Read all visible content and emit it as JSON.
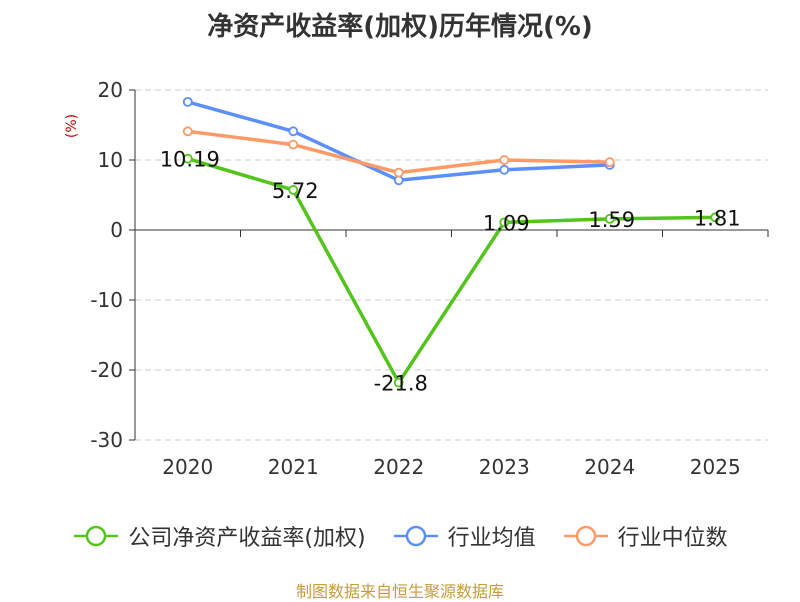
{
  "chart_data": {
    "type": "line",
    "title": "净资产收益率(加权)历年情况(%)",
    "ylabel": "(%)",
    "xlabel": "",
    "categories": [
      "2020",
      "2021",
      "2022",
      "2023",
      "2024",
      "2025"
    ],
    "ylim": [
      -30,
      20
    ],
    "yticks": [
      20,
      10,
      0,
      -10,
      -20,
      -30
    ],
    "grid": true,
    "legend_position": "bottom",
    "series": [
      {
        "name": "公司净资产收益率(加权)",
        "color": "#52c41a",
        "values": [
          10.19,
          5.72,
          -21.8,
          1.09,
          1.59,
          1.81
        ],
        "labels": [
          "10.19",
          "5.72",
          "-21.8",
          "1.09",
          "1.59",
          "1.81"
        ]
      },
      {
        "name": "行业均值",
        "color": "#5b8ff9",
        "values": [
          18.3,
          14.1,
          7.1,
          8.6,
          9.3,
          null
        ]
      },
      {
        "name": "行业中位数",
        "color": "#ff9966",
        "values": [
          14.1,
          12.2,
          8.2,
          10.0,
          9.7,
          null
        ]
      }
    ]
  },
  "footer": {
    "source": "制图数据来自恒生聚源数据库"
  }
}
